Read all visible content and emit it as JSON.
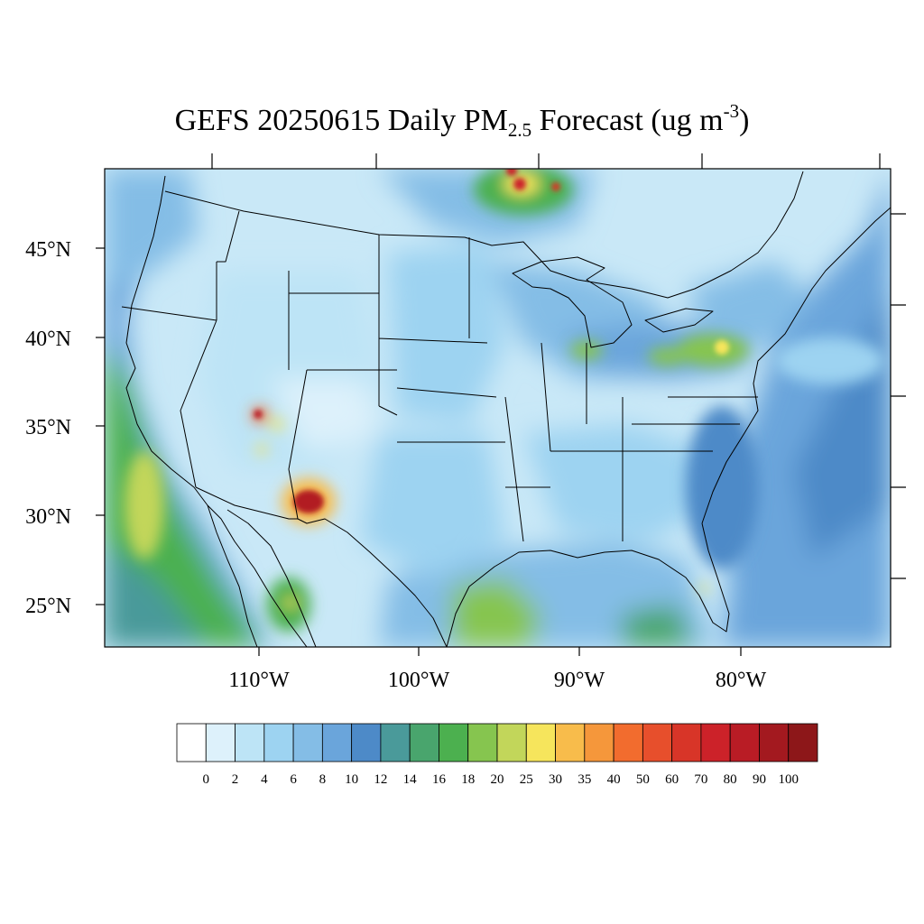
{
  "title": {
    "prefix": "GEFS 20250615 Daily PM",
    "pm_subscript": "2.5",
    "middle": " Forecast (ug m",
    "unit_superscript": "-3",
    "suffix": ")"
  },
  "map": {
    "lat_labels": [
      "45°N",
      "40°N",
      "35°N",
      "30°N",
      "25°N"
    ],
    "lon_labels": [
      "110°W",
      "100°W",
      "90°W",
      "80°W"
    ],
    "colors": {
      "background": "#c9e8f7",
      "ocean": "#5e9fd8",
      "coast_green": "#58b85a",
      "hotspot_red": "#b21b21",
      "border": "#000000"
    }
  },
  "colorbar": {
    "tick_labels": [
      "0",
      "2",
      "4",
      "6",
      "8",
      "10",
      "12",
      "14",
      "16",
      "18",
      "20",
      "25",
      "30",
      "35",
      "40",
      "50",
      "60",
      "70",
      "80",
      "90",
      "100"
    ],
    "colors": [
      "#ffffff",
      "#ddf1fb",
      "#bde4f6",
      "#9dd3f1",
      "#84bde6",
      "#6aa5db",
      "#4d8ac8",
      "#4a9a9a",
      "#49a56d",
      "#4cb04f",
      "#86c54f",
      "#c2d65a",
      "#f6e55c",
      "#f8bc4b",
      "#f5973b",
      "#f26c2e",
      "#e74f2c",
      "#d83528",
      "#cc2229",
      "#b91c25",
      "#a3191f",
      "#8d1719"
    ]
  }
}
